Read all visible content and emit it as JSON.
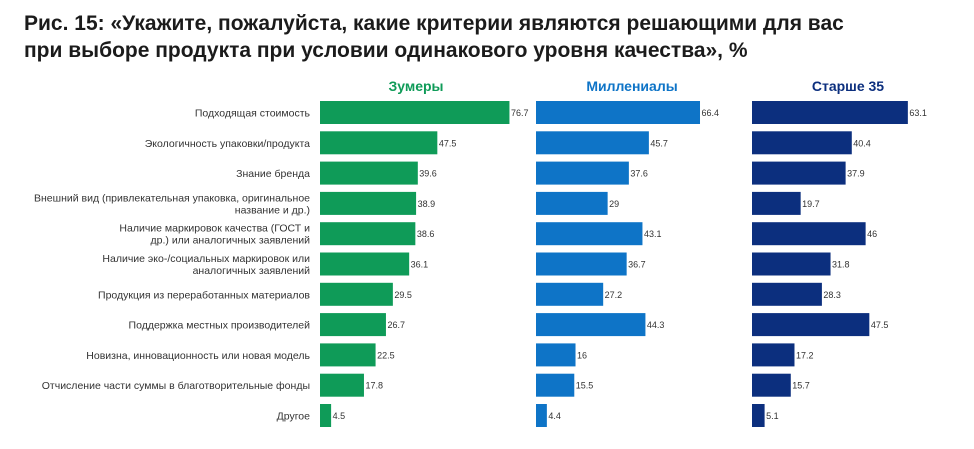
{
  "title": {
    "line1": "Рис. 15: «Укажите, пожалуйста, какие критерии являются решающими для вас",
    "line2": "при выборе продукта при условии одинакового уровня качества», %"
  },
  "chart_data": {
    "type": "bar",
    "orientation": "horizontal",
    "title": "Рис. 15: «Укажите, пожалуйста, какие критерии являются решающими для вас при выборе продукта при условии одинакового уровня качества», %",
    "categories": [
      [
        "Подходящая стоимость"
      ],
      [
        "Экологичность упаковки/продукта"
      ],
      [
        "Знание бренда"
      ],
      [
        "Внешний вид (привлекательная упаковка, оригинальное",
        "название и др.)"
      ],
      [
        "Наличие маркировок качества (ГОСТ и",
        "др.) или аналогичных заявлений"
      ],
      [
        "Наличие эко-/социальных маркировок или",
        "аналогичных заявлений"
      ],
      [
        "Продукция из переработанных материалов"
      ],
      [
        "Поддержка местных производителей"
      ],
      [
        "Новизна, инновационность или новая модель"
      ],
      [
        "Отчисление части суммы в благотворительные фонды"
      ],
      [
        "Другое"
      ]
    ],
    "series": [
      {
        "name": "Зумеры",
        "color": "#0f9b58",
        "values": [
          76.7,
          47.5,
          39.6,
          38.9,
          38.6,
          36.1,
          29.5,
          26.7,
          22.5,
          17.8,
          4.5
        ]
      },
      {
        "name": "Миллениалы",
        "color": "#0e74c7",
        "values": [
          66.4,
          45.7,
          37.6,
          29,
          43.1,
          36.7,
          27.2,
          44.3,
          16,
          15.5,
          4.4
        ]
      },
      {
        "name": "Старше 35",
        "color": "#0c2f7e",
        "values": [
          63.1,
          40.4,
          37.9,
          19.7,
          46,
          31.8,
          28.3,
          47.5,
          17.2,
          15.7,
          5.1
        ]
      }
    ],
    "value_labels": [
      [
        "76.7",
        "47.5",
        "39.6",
        "38.9",
        "38.6",
        "36.1",
        "29.5",
        "26.7",
        "22.5",
        "17.8",
        "4.5"
      ],
      [
        "66.4",
        "45.7",
        "37.6",
        "29",
        "43.1",
        "36.7",
        "27.2",
        "44.3",
        "16",
        "15.5",
        "4.4"
      ],
      [
        "63.1",
        "40.4",
        "37.9",
        "19.7",
        "46",
        "31.8",
        "28.3",
        "47.5",
        "17.2",
        "15.7",
        "5.1"
      ]
    ],
    "xlim": [
      0,
      100
    ],
    "grid": false,
    "legend": "panel headers above each column"
  }
}
